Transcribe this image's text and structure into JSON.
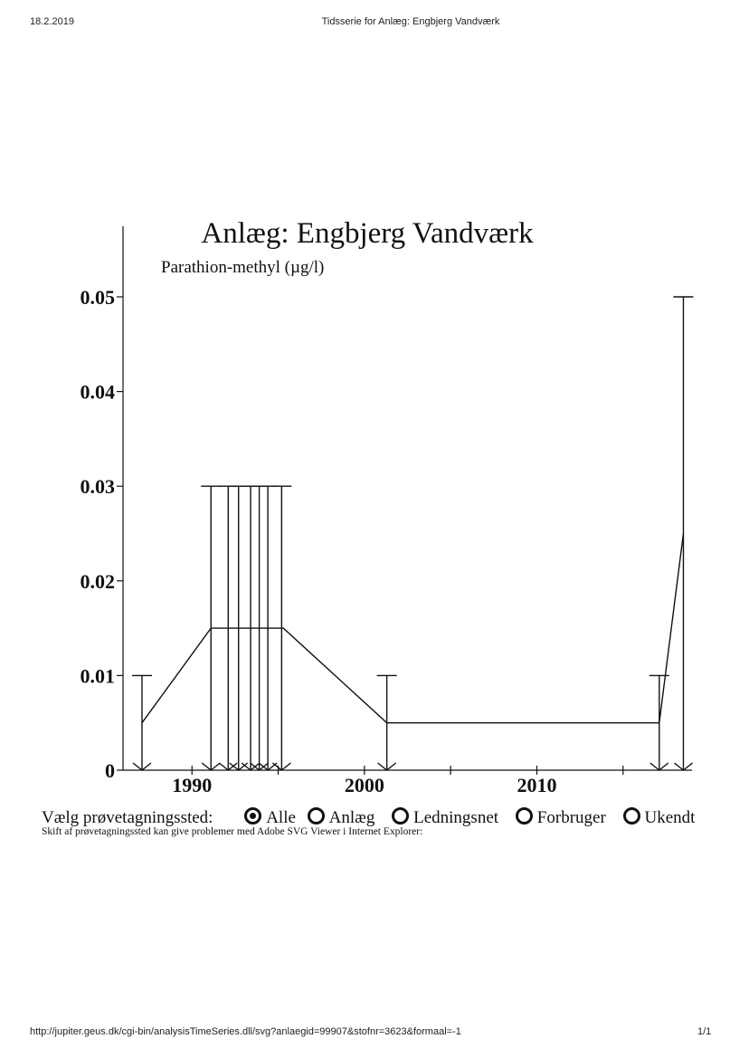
{
  "header": {
    "date": "18.2.2019",
    "title": "Tidsserie for Anlæg: Engbjerg Vandværk"
  },
  "footer": {
    "url": "http://jupiter.geus.dk/cgi-bin/analysisTimeSeries.dll/svg?anlaegid=99907&stofnr=3623&formaal=-1",
    "page": "1/1"
  },
  "chart_data": {
    "type": "line",
    "title": "Anlæg: Engbjerg Vandværk",
    "ylabel": "Parathion-methyl (µg/l)",
    "xlim": [
      1986,
      2019
    ],
    "ylim": [
      0,
      0.05
    ],
    "xticks": [
      "1990",
      "2000",
      "2010"
    ],
    "yticks": [
      "0",
      "0.01",
      "0.02",
      "0.03",
      "0.04",
      "0.05"
    ],
    "grid": false,
    "series": [
      {
        "x": [
          1987.1,
          1991.1,
          1995.3,
          2001.3,
          2017.1,
          2018.5
        ],
        "y": [
          0.005,
          0.015,
          0.015,
          0.005,
          0.005,
          0.025
        ]
      }
    ],
    "detection_limits": [
      {
        "x": 1987.1,
        "limit": 0.01
      },
      {
        "x": 1991.1,
        "limit": 0.03
      },
      {
        "x": 1992.1,
        "limit": 0.03
      },
      {
        "x": 1992.7,
        "limit": 0.03
      },
      {
        "x": 1993.4,
        "limit": 0.03
      },
      {
        "x": 1993.9,
        "limit": 0.03
      },
      {
        "x": 1994.4,
        "limit": 0.03
      },
      {
        "x": 1995.2,
        "limit": 0.03
      },
      {
        "x": 2001.3,
        "limit": 0.01
      },
      {
        "x": 2017.1,
        "limit": 0.01
      },
      {
        "x": 2018.5,
        "limit": 0.05
      }
    ]
  },
  "selector": {
    "label": "Vælg prøvetagningssted:",
    "options": [
      {
        "label": "Alle",
        "selected": true
      },
      {
        "label": "Anlæg",
        "selected": false
      },
      {
        "label": "Ledningsnet",
        "selected": false
      },
      {
        "label": "Forbruger",
        "selected": false
      },
      {
        "label": "Ukendt",
        "selected": false
      }
    ],
    "note": "Skift af prøvetagningssted kan give problemer med Adobe SVG Viewer i Internet Explorer:"
  }
}
